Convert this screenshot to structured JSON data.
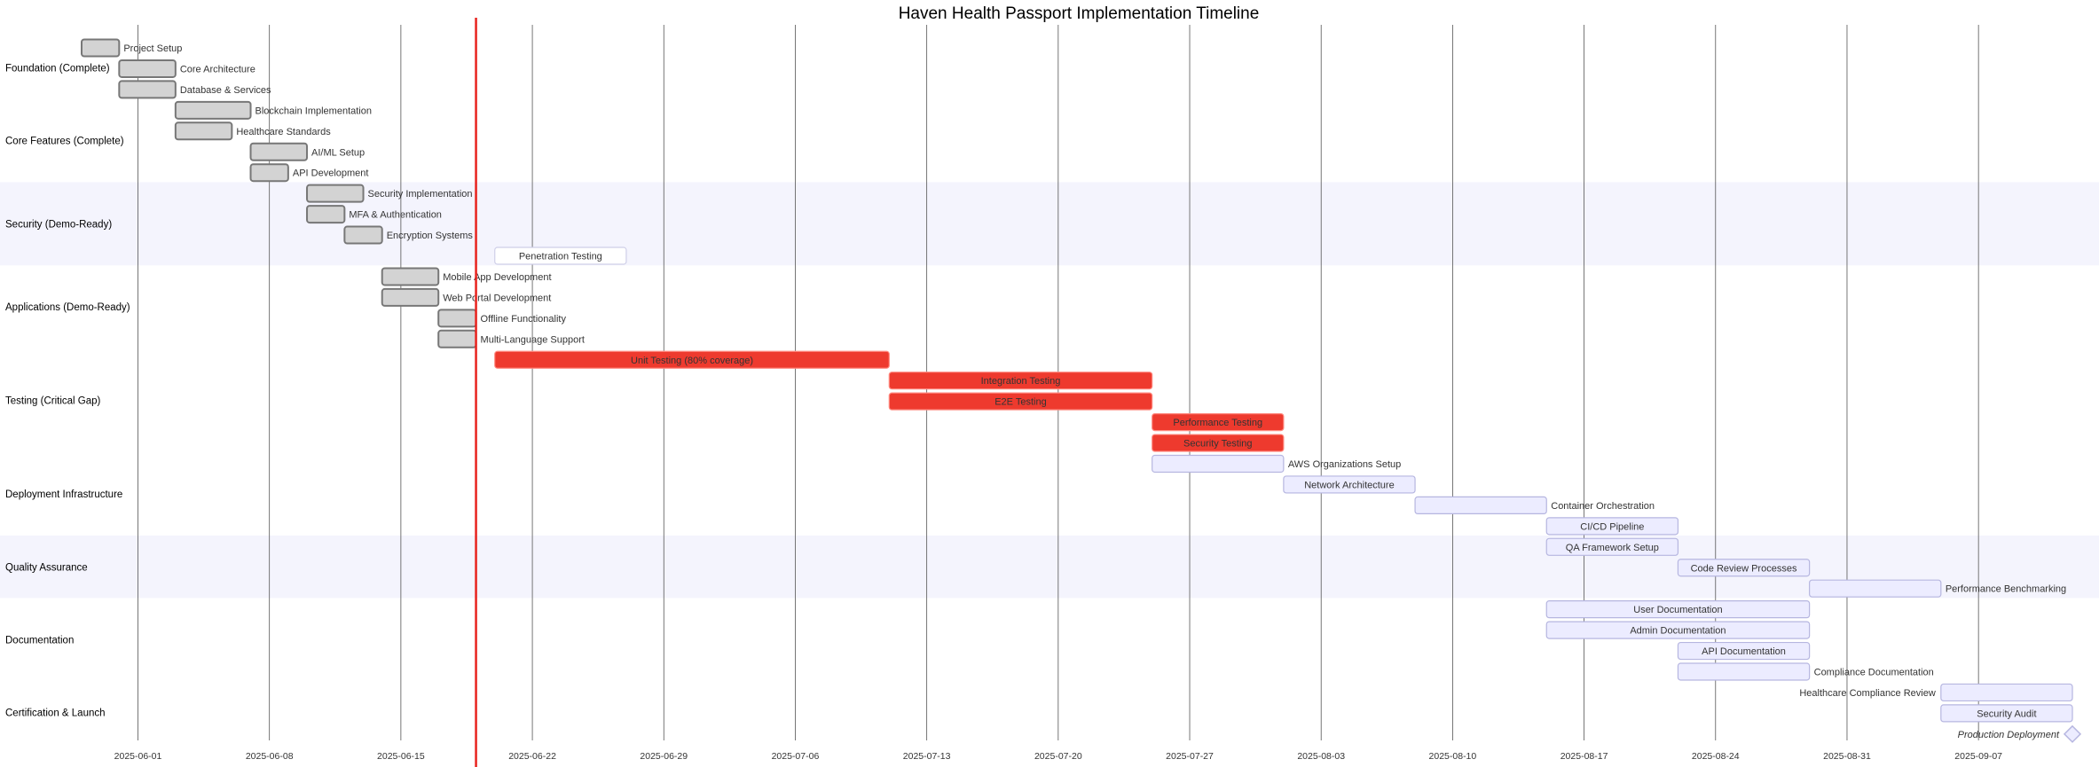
{
  "colors": {
    "done_fill": "#d3d3d3",
    "done_stroke": "#777777",
    "crit_fill": "#ee3a2e",
    "crit_stroke": "#ff8a80",
    "active_fill": "#ffffff",
    "active_stroke": "#cfcfe8",
    "future_fill": "#ececff",
    "future_stroke": "#b6b6e0",
    "today": "#e8231e",
    "grid": "#555555",
    "band": "#f4f4fd"
  },
  "chart_data": {
    "type": "gantt",
    "title": "Haven Health Passport Implementation Timeline",
    "x_axis": {
      "type": "date",
      "range": [
        "2025-05-26",
        "2025-09-11"
      ]
    },
    "ticks": [
      "2025-06-01",
      "2025-06-08",
      "2025-06-15",
      "2025-06-22",
      "2025-06-29",
      "2025-07-06",
      "2025-07-13",
      "2025-07-20",
      "2025-07-27",
      "2025-08-03",
      "2025-08-10",
      "2025-08-17",
      "2025-08-24",
      "2025-08-31",
      "2025-09-07"
    ],
    "today": "2025-06-19",
    "sections": [
      {
        "name": "Foundation (Complete)",
        "band": false,
        "tasks": [
          {
            "name": "Project Setup",
            "start": "2025-05-29",
            "end": "2025-05-31",
            "status": "done"
          },
          {
            "name": "Core Architecture",
            "start": "2025-05-31",
            "end": "2025-06-03",
            "status": "done"
          },
          {
            "name": "Database & Services",
            "start": "2025-05-31",
            "end": "2025-06-03",
            "status": "done"
          }
        ]
      },
      {
        "name": "Core Features (Complete)",
        "band": false,
        "tasks": [
          {
            "name": "Blockchain Implementation",
            "start": "2025-06-03",
            "end": "2025-06-07",
            "status": "done"
          },
          {
            "name": "Healthcare Standards",
            "start": "2025-06-03",
            "end": "2025-06-06",
            "status": "done"
          },
          {
            "name": "AI/ML Setup",
            "start": "2025-06-07",
            "end": "2025-06-10",
            "status": "done"
          },
          {
            "name": "API Development",
            "start": "2025-06-07",
            "end": "2025-06-09",
            "status": "done"
          }
        ]
      },
      {
        "name": "Security (Demo-Ready)",
        "band": true,
        "tasks": [
          {
            "name": "Security Implementation",
            "start": "2025-06-10",
            "end": "2025-06-13",
            "status": "done"
          },
          {
            "name": "MFA & Authentication",
            "start": "2025-06-10",
            "end": "2025-06-12",
            "status": "done"
          },
          {
            "name": "Encryption Systems",
            "start": "2025-06-12",
            "end": "2025-06-14",
            "status": "done"
          },
          {
            "name": "Penetration Testing",
            "start": "2025-06-20",
            "end": "2025-06-27",
            "status": "active"
          }
        ]
      },
      {
        "name": "Applications (Demo-Ready)",
        "band": false,
        "tasks": [
          {
            "name": "Mobile App Development",
            "start": "2025-06-14",
            "end": "2025-06-17",
            "status": "done"
          },
          {
            "name": "Web Portal Development",
            "start": "2025-06-14",
            "end": "2025-06-17",
            "status": "done"
          },
          {
            "name": "Offline Functionality",
            "start": "2025-06-17",
            "end": "2025-06-19",
            "status": "done"
          },
          {
            "name": "Multi-Language Support",
            "start": "2025-06-17",
            "end": "2025-06-19",
            "status": "done"
          }
        ]
      },
      {
        "name": "Testing (Critical Gap)",
        "band": false,
        "tasks": [
          {
            "name": "Unit Testing (80% coverage)",
            "start": "2025-06-20",
            "end": "2025-07-11",
            "status": "crit"
          },
          {
            "name": "Integration Testing",
            "start": "2025-07-11",
            "end": "2025-07-25",
            "status": "crit"
          },
          {
            "name": "E2E Testing",
            "start": "2025-07-11",
            "end": "2025-07-25",
            "status": "crit"
          },
          {
            "name": "Performance Testing",
            "start": "2025-07-25",
            "end": "2025-08-01",
            "status": "crit"
          },
          {
            "name": "Security Testing",
            "start": "2025-07-25",
            "end": "2025-08-01",
            "status": "crit"
          }
        ]
      },
      {
        "name": "Deployment Infrastructure",
        "band": false,
        "tasks": [
          {
            "name": "AWS Organizations Setup",
            "start": "2025-07-25",
            "end": "2025-08-01",
            "status": "future"
          },
          {
            "name": "Network Architecture",
            "start": "2025-08-01",
            "end": "2025-08-08",
            "status": "future"
          },
          {
            "name": "Container Orchestration",
            "start": "2025-08-08",
            "end": "2025-08-15",
            "status": "future"
          },
          {
            "name": "CI/CD Pipeline",
            "start": "2025-08-15",
            "end": "2025-08-22",
            "status": "future"
          }
        ]
      },
      {
        "name": "Quality Assurance",
        "band": true,
        "tasks": [
          {
            "name": "QA Framework Setup",
            "start": "2025-08-15",
            "end": "2025-08-22",
            "status": "future"
          },
          {
            "name": "Code Review Processes",
            "start": "2025-08-22",
            "end": "2025-08-29",
            "status": "future"
          },
          {
            "name": "Performance Benchmarking",
            "start": "2025-08-29",
            "end": "2025-09-05",
            "status": "future"
          }
        ]
      },
      {
        "name": "Documentation",
        "band": false,
        "tasks": [
          {
            "name": "User Documentation",
            "start": "2025-08-15",
            "end": "2025-08-29",
            "status": "future"
          },
          {
            "name": "Admin Documentation",
            "start": "2025-08-15",
            "end": "2025-08-29",
            "status": "future"
          },
          {
            "name": "API Documentation",
            "start": "2025-08-22",
            "end": "2025-08-29",
            "status": "future"
          },
          {
            "name": "Compliance Documentation",
            "start": "2025-08-22",
            "end": "2025-08-29",
            "status": "future"
          }
        ]
      },
      {
        "name": "Certification & Launch",
        "band": false,
        "tasks": [
          {
            "name": "Healthcare Compliance Review",
            "start": "2025-09-05",
            "end": "2025-09-12",
            "status": "future",
            "label_side": "left"
          },
          {
            "name": "Security Audit",
            "start": "2025-09-05",
            "end": "2025-09-12",
            "status": "future"
          },
          {
            "name": "Production Deployment",
            "start": "2025-09-12",
            "end": "2025-09-12",
            "status": "milestone"
          }
        ]
      }
    ]
  }
}
